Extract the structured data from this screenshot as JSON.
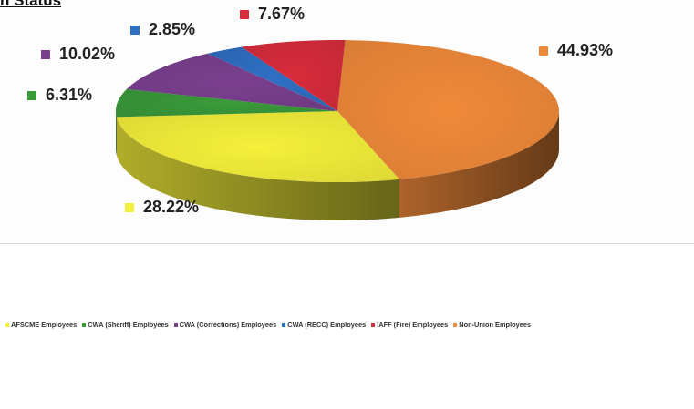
{
  "chart_data": {
    "type": "pie",
    "title": "",
    "series": [
      {
        "name": "AFSCME Employees",
        "value": 28.22,
        "label": "28.22%",
        "color": "#f5f03a"
      },
      {
        "name": "CWA (Sheriff) Employees",
        "value": 6.31,
        "label": "6.31%",
        "color": "#3a9a3a"
      },
      {
        "name": "CWA (Corrections) Employees",
        "value": 10.02,
        "label": "10.02%",
        "color": "#7a3f8e"
      },
      {
        "name": "CWA (RECC) Employees",
        "value": 2.85,
        "label": "2.85%",
        "color": "#2f6fc4"
      },
      {
        "name": "IAFF (Fire) Employees",
        "value": 7.67,
        "label": "7.67%",
        "color": "#d92c3c"
      },
      {
        "name": "Non-Union Employees",
        "value": 44.93,
        "label": "44.93%",
        "color": "#f08a3a"
      }
    ],
    "legend_position": "bottom"
  },
  "header": {
    "partial_title": "n Status"
  }
}
